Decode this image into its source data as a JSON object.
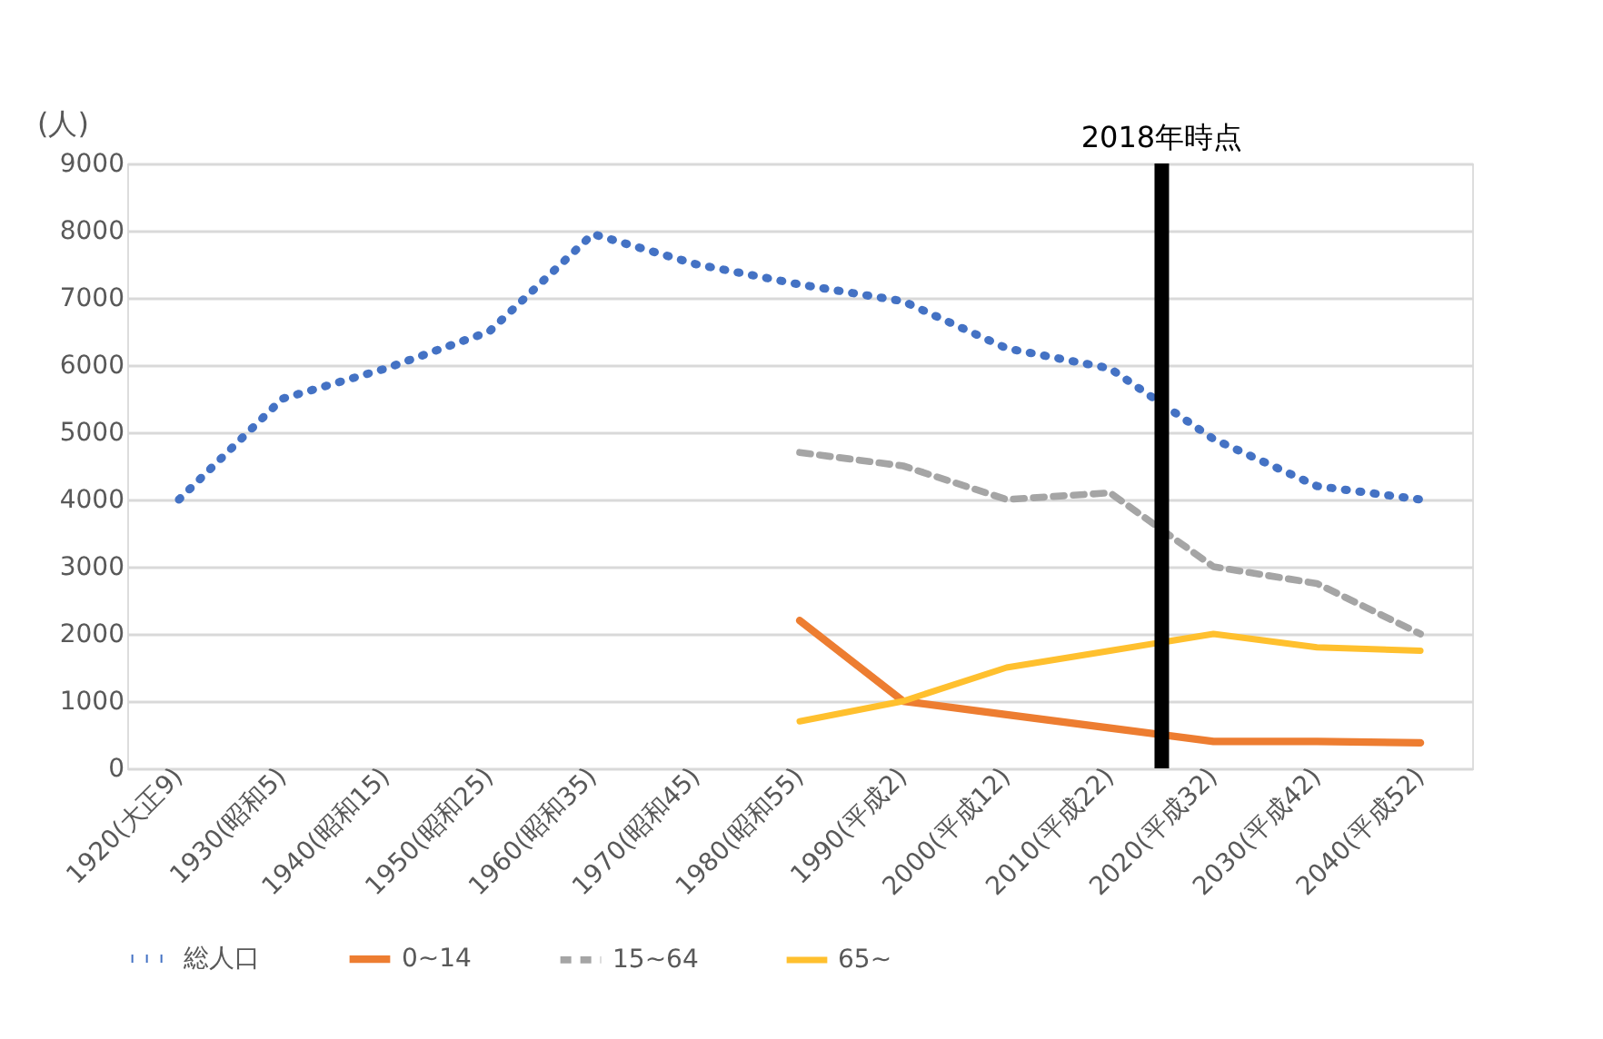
{
  "chart_data": {
    "type": "line",
    "ylabel": "(人)",
    "categories": [
      "1920(大正9)",
      "1930(昭和5)",
      "1940(昭和15)",
      "1950(昭和25)",
      "1960(昭和35)",
      "1970(昭和45)",
      "1980(昭和55)",
      "1990(平成2)",
      "2000(平成12)",
      "2010(平成22)",
      "2020(平成32)",
      "2030(平成42)",
      "2040(平成52)"
    ],
    "series": [
      {
        "name": "総人口",
        "color": "#4472c4",
        "line_style": "dotted",
        "values": [
          4000,
          5500,
          5950,
          6500,
          7950,
          7500,
          7200,
          6950,
          6250,
          5950,
          4900,
          4200,
          4000
        ]
      },
      {
        "name": "0~14",
        "color": "#ed7d31",
        "line_style": "solid",
        "values": [
          null,
          null,
          null,
          null,
          null,
          null,
          2200,
          1000,
          800,
          600,
          400,
          400,
          380
        ]
      },
      {
        "name": "15~64",
        "color": "#a5a5a5",
        "line_style": "dashed",
        "values": [
          null,
          null,
          null,
          null,
          null,
          null,
          4700,
          4500,
          4000,
          4100,
          3000,
          2750,
          2000
        ]
      },
      {
        "name": "65~",
        "color": "#ffc02e",
        "line_style": "solid",
        "values": [
          null,
          null,
          null,
          null,
          null,
          null,
          700,
          1000,
          1500,
          1750,
          2000,
          1800,
          1750
        ]
      }
    ],
    "ylim": [
      0,
      9000
    ],
    "yticks": [
      0,
      1000,
      2000,
      3000,
      4000,
      5000,
      6000,
      7000,
      8000,
      9000
    ],
    "ref_lines": [
      {
        "axis": "x",
        "value": "2020(平成32)",
        "label": "2018年時点",
        "color": "#000000"
      }
    ],
    "grid": "y",
    "legend": "bottom"
  }
}
